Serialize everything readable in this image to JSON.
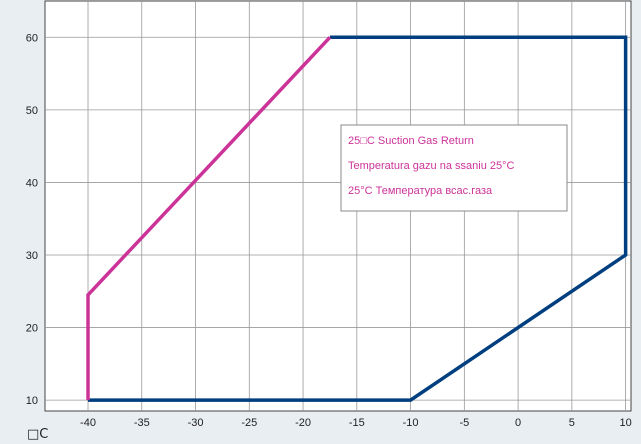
{
  "chart_data": {
    "type": "line",
    "title": "",
    "xlabel": "",
    "ylabel": "",
    "unit_label": "□C",
    "xlim": [
      -44,
      10.5
    ],
    "ylim": [
      8.5,
      65
    ],
    "x_ticks": [
      -40,
      -35,
      -30,
      -25,
      -20,
      -15,
      -10,
      -5,
      0,
      5,
      10
    ],
    "y_ticks": [
      10,
      20,
      30,
      40,
      50,
      60
    ],
    "grid": true,
    "legend_placement": "upper-center",
    "legend": [
      "25□C Suction Gas Return",
      "Temperatura gazu na ssaniu 25°C",
      "25°C Температура всас.газа"
    ],
    "series": [
      {
        "color": "#003f7f",
        "points": [
          [
            -40,
            10
          ],
          [
            -10,
            10
          ],
          [
            10,
            30
          ],
          [
            10,
            60
          ],
          [
            -17.5,
            60
          ]
        ]
      },
      {
        "color": "#cc3399",
        "points": [
          [
            -17.5,
            60
          ],
          [
            -40,
            24.5
          ],
          [
            -40,
            10
          ]
        ]
      }
    ],
    "legend_color": "#cc3399",
    "background_color": "#e9eef3",
    "plot_background_color": "#ffffff",
    "grid_color": "#999999"
  }
}
